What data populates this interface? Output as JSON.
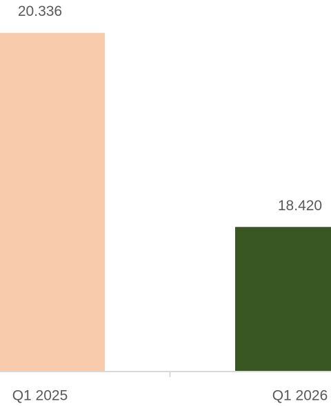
{
  "chart_data": {
    "type": "bar",
    "categories": [
      "Q1 2025",
      "Q1 2026"
    ],
    "values": [
      20.336,
      18.42
    ],
    "value_labels": [
      "20.336",
      "18.420"
    ],
    "colors": [
      "#f8cbad",
      "#385723"
    ],
    "ylim": [
      17.0,
      20.66
    ]
  }
}
